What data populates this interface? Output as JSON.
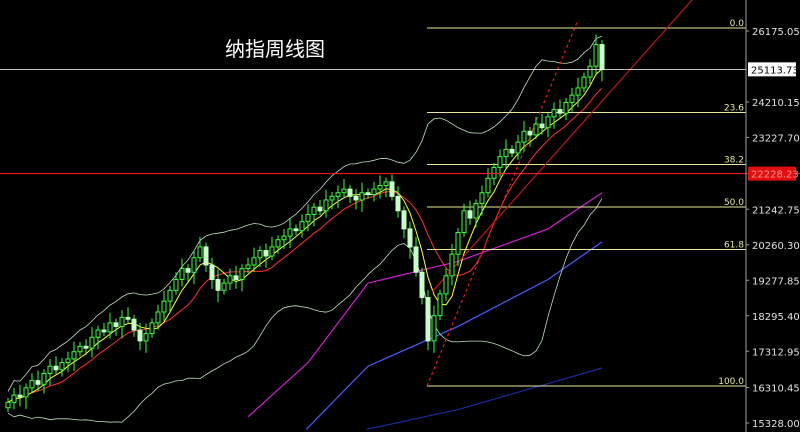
{
  "chart_data": {
    "type": "candlestick",
    "title": "纳指周线图",
    "ylim": [
      15150,
      26950
    ],
    "y_ticks": [
      "26175.05",
      "24210.15",
      "23227.70",
      "21242.75",
      "20260.30",
      "19277.85",
      "18295.40",
      "17312.95",
      "16310.45",
      "15328.00"
    ],
    "current_price": "25113.73",
    "marked_price": "22228.23",
    "closes": [
      15900,
      16100,
      16050,
      16300,
      16500,
      16400,
      16700,
      16900,
      16800,
      17000,
      17100,
      17300,
      17450,
      17400,
      17700,
      17900,
      17850,
      18100,
      18000,
      18250,
      18200,
      17900,
      17600,
      17800,
      18100,
      18400,
      18700,
      19000,
      19300,
      19600,
      19500,
      19900,
      20200,
      19700,
      19300,
      19000,
      19200,
      19400,
      19300,
      19600,
      19700,
      19900,
      20100,
      19950,
      20200,
      20400,
      20500,
      20700,
      20650,
      20900,
      21100,
      21300,
      21200,
      21500,
      21600,
      21700,
      21800,
      21600,
      21500,
      21700,
      21650,
      21800,
      21900,
      22000,
      21600,
      21200,
      20700,
      20200,
      19500,
      18800,
      17600,
      18300,
      18900,
      19400,
      20000,
      20600,
      21200,
      21000,
      21400,
      21700,
      22100,
      22400,
      22700,
      22900,
      22800,
      23100,
      23400,
      23300,
      23600,
      23500,
      23800,
      24000,
      23900,
      24200,
      24400,
      24600,
      24900,
      25200,
      25800,
      25113
    ],
    "fibonacci": [
      {
        "label": "0.0",
        "price": 26258
      },
      {
        "label": "23.6",
        "price": 23920
      },
      {
        "label": "38.2",
        "price": 22482
      },
      {
        "label": "50.0",
        "price": 21305
      },
      {
        "label": "61.8",
        "price": 20130
      },
      {
        "label": "100.0",
        "price": 16352
      }
    ],
    "long_ma_lines": [
      {
        "color": "#d020d0",
        "points": [
          [
            40,
            15500
          ],
          [
            50,
            17000
          ],
          [
            60,
            19200
          ],
          [
            75,
            19800
          ],
          [
            90,
            20700
          ],
          [
            99,
            21700
          ]
        ]
      },
      {
        "color": "#4a5cff",
        "points": [
          [
            40,
            13500
          ],
          [
            60,
            16900
          ],
          [
            75,
            18000
          ],
          [
            90,
            19300
          ],
          [
            99,
            20340
          ]
        ]
      },
      {
        "color": "#1a2a9a",
        "points": [
          [
            50,
            14800
          ],
          [
            75,
            15700
          ],
          [
            99,
            16850
          ]
        ]
      }
    ],
    "colors": {
      "up": "#3cff3c",
      "down": "#c8ffc8",
      "fib": "#e8e8a0",
      "price_line": "#ffffff",
      "marked_line": "#ff2020",
      "ma_fast": "#ffff40",
      "ma_mid": "#ff3030",
      "band": "#c0e0c0"
    }
  }
}
